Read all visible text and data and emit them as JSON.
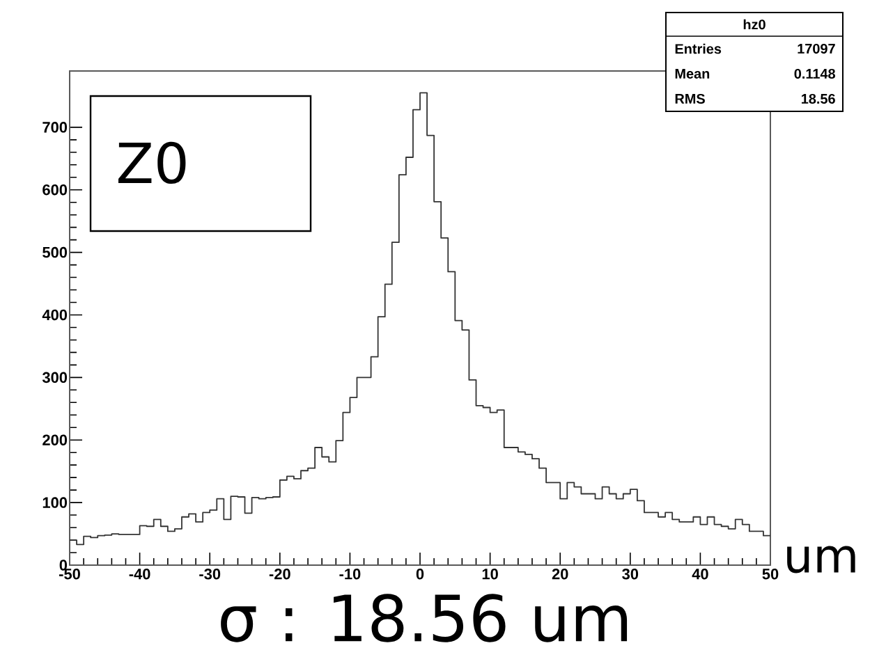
{
  "chart_data": {
    "type": "histogram",
    "xlabel": "um",
    "annotations": [
      "Z0",
      "hz0",
      "Entries",
      "17097",
      "Mean",
      "0.1148",
      "RMS",
      "18.56",
      "σ : 18.56 um"
    ],
    "bins": [
      -50,
      -49,
      -48,
      -47,
      -46,
      -45,
      -44,
      -43,
      -42,
      -41,
      -40,
      -39,
      -38,
      -37,
      -36,
      -35,
      -34,
      -33,
      -32,
      -31,
      -30,
      -29,
      -28,
      -27,
      -26,
      -25,
      -24,
      -23,
      -22,
      -21,
      -20,
      -19,
      -18,
      -17,
      -16,
      -15,
      -14,
      -13,
      -12,
      -11,
      -10,
      -9,
      -8,
      -7,
      -6,
      -5,
      -4,
      -3,
      -2,
      -1,
      0,
      1,
      2,
      3,
      4,
      5,
      6,
      7,
      8,
      9,
      10,
      11,
      12,
      13,
      14,
      15,
      16,
      17,
      18,
      19,
      20,
      21,
      22,
      23,
      24,
      25,
      26,
      27,
      28,
      29,
      30,
      31,
      32,
      33,
      34,
      35,
      36,
      37,
      38,
      39,
      40,
      41,
      42,
      43,
      44,
      45,
      46,
      47,
      48,
      49,
      50
    ],
    "values": [
      40,
      33,
      46,
      44,
      47,
      48,
      50,
      49,
      49,
      49,
      63,
      62,
      73,
      62,
      54,
      58,
      77,
      82,
      69,
      84,
      88,
      106,
      73,
      110,
      109,
      83,
      108,
      106,
      108,
      109,
      136,
      142,
      138,
      151,
      155,
      188,
      173,
      165,
      199,
      244,
      268,
      300,
      300,
      333,
      397,
      449,
      516,
      624,
      652,
      728,
      755,
      687,
      581,
      523,
      469,
      391,
      376,
      296,
      255,
      252,
      244,
      248,
      188,
      188,
      181,
      177,
      170,
      155,
      132,
      132,
      106,
      132,
      125,
      114,
      114,
      106,
      125,
      114,
      106,
      114,
      121,
      103,
      84,
      84,
      77,
      84,
      73,
      69,
      69,
      77,
      65,
      77,
      65,
      62,
      58,
      73,
      65,
      54,
      54,
      47
    ],
    "color": "#333333",
    "xlim": [
      -50,
      50
    ],
    "ylim": [
      0,
      790
    ],
    "xticks": [
      -50,
      -40,
      -30,
      -20,
      -10,
      0,
      10,
      20,
      30,
      40,
      50
    ],
    "yticks": [
      0,
      100,
      200,
      300,
      400,
      500,
      600,
      700
    ]
  }
}
